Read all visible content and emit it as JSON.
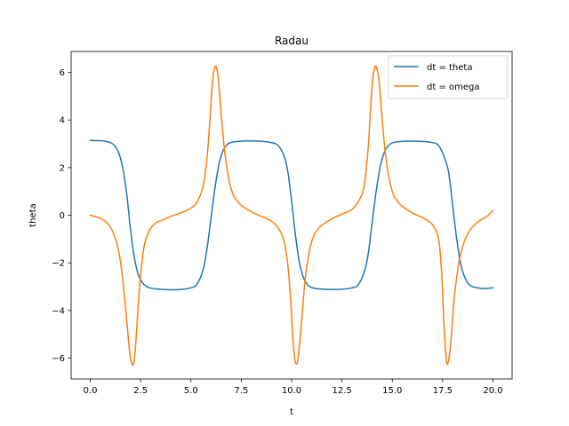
{
  "chart_data": {
    "type": "line",
    "title": "Radau",
    "xlabel": "t",
    "ylabel": "theta",
    "xlim": [
      -0.95,
      20.95
    ],
    "ylim": [
      -6.88,
      6.88
    ],
    "xticks": [
      0.0,
      2.5,
      5.0,
      7.5,
      10.0,
      12.5,
      15.0,
      17.5,
      20.0
    ],
    "xtick_labels": [
      "0.0",
      "2.5",
      "5.0",
      "7.5",
      "10.0",
      "12.5",
      "15.0",
      "17.5",
      "20.0"
    ],
    "yticks": [
      -6,
      -4,
      -2,
      0,
      2,
      4,
      6
    ],
    "ytick_labels": [
      "−6",
      "−4",
      "−2",
      "0",
      "2",
      "4",
      "6"
    ],
    "grid": false,
    "legend_position": "top-right",
    "series": [
      {
        "name": "dt = theta",
        "color": "#1f77b4",
        "x": [
          0.0,
          0.5,
          0.8,
          1.0,
          1.2,
          1.4,
          1.6,
          1.8,
          2.0,
          2.2,
          2.4,
          2.6,
          2.8,
          3.0,
          3.3,
          3.6,
          4.0,
          4.5,
          5.0,
          5.3,
          5.6,
          5.8,
          6.0,
          6.2,
          6.4,
          6.6,
          6.8,
          7.0,
          7.3,
          7.6,
          8.0,
          8.5,
          9.0,
          9.3,
          9.6,
          9.8,
          10.0,
          10.2,
          10.4,
          10.6,
          10.8,
          11.0,
          11.3,
          11.6,
          12.0,
          12.5,
          13.0,
          13.3,
          13.6,
          13.8,
          14.0,
          14.2,
          14.4,
          14.6,
          14.8,
          15.0,
          15.3,
          15.6,
          16.0,
          16.5,
          17.0,
          17.3,
          17.6,
          17.8,
          18.0,
          18.2,
          18.4,
          18.6,
          18.8,
          19.0,
          19.3,
          19.6,
          20.0
        ],
        "y": [
          3.14,
          3.13,
          3.1,
          3.05,
          2.93,
          2.66,
          2.05,
          0.98,
          -0.6,
          -1.83,
          -2.53,
          -2.85,
          -3.0,
          -3.06,
          -3.1,
          -3.12,
          -3.13,
          -3.12,
          -3.05,
          -2.9,
          -2.3,
          -1.4,
          -0.1,
          1.18,
          2.18,
          2.72,
          2.97,
          3.06,
          3.1,
          3.12,
          3.12,
          3.11,
          3.05,
          2.95,
          2.55,
          1.9,
          0.6,
          -0.9,
          -2.05,
          -2.65,
          -2.93,
          -3.04,
          -3.09,
          -3.11,
          -3.12,
          -3.11,
          -3.05,
          -2.93,
          -2.4,
          -1.65,
          -0.3,
          1.0,
          2.05,
          2.63,
          2.92,
          3.04,
          3.09,
          3.11,
          3.11,
          3.1,
          3.05,
          2.93,
          2.4,
          1.8,
          0.4,
          -1.0,
          -2.05,
          -2.62,
          -2.9,
          -3.01,
          -3.06,
          -3.08,
          -3.05
        ]
      },
      {
        "name": "dt = omega",
        "color": "#ff7f0e",
        "x": [
          0.0,
          0.5,
          0.8,
          1.0,
          1.2,
          1.4,
          1.6,
          1.8,
          1.95,
          2.05,
          2.15,
          2.25,
          2.35,
          2.5,
          2.7,
          3.0,
          3.3,
          3.6,
          4.0,
          4.5,
          5.0,
          5.3,
          5.6,
          5.8,
          5.95,
          6.05,
          6.15,
          6.25,
          6.35,
          6.5,
          6.7,
          7.0,
          7.4,
          8.0,
          8.5,
          9.0,
          9.3,
          9.6,
          9.8,
          9.95,
          10.05,
          10.15,
          10.25,
          10.35,
          10.5,
          10.7,
          11.0,
          11.4,
          12.0,
          12.5,
          13.0,
          13.3,
          13.6,
          13.8,
          13.9,
          14.0,
          14.1,
          14.2,
          14.35,
          14.5,
          14.7,
          15.0,
          15.4,
          16.0,
          16.5,
          17.0,
          17.3,
          17.45,
          17.55,
          17.65,
          17.75,
          17.9,
          18.1,
          18.4,
          18.8,
          19.3,
          19.7,
          20.0
        ],
        "y": [
          0.0,
          -0.12,
          -0.3,
          -0.5,
          -0.85,
          -1.45,
          -2.6,
          -4.3,
          -5.7,
          -6.2,
          -6.25,
          -5.5,
          -4.2,
          -2.5,
          -1.2,
          -0.55,
          -0.3,
          -0.2,
          -0.05,
          0.1,
          0.3,
          0.55,
          1.2,
          2.4,
          4.1,
          5.4,
          6.1,
          6.25,
          5.8,
          4.3,
          2.5,
          1.1,
          0.5,
          0.15,
          -0.05,
          -0.25,
          -0.5,
          -1.0,
          -2.0,
          -3.5,
          -5.0,
          -6.0,
          -6.25,
          -5.8,
          -4.4,
          -2.5,
          -1.1,
          -0.5,
          -0.15,
          0.05,
          0.25,
          0.55,
          1.2,
          2.8,
          4.2,
          5.5,
          6.1,
          6.25,
          5.6,
          4.0,
          2.3,
          1.0,
          0.45,
          0.1,
          -0.1,
          -0.4,
          -1.0,
          -2.4,
          -4.3,
          -5.8,
          -6.25,
          -5.4,
          -3.3,
          -1.6,
          -0.7,
          -0.25,
          -0.05,
          0.2
        ]
      }
    ]
  }
}
